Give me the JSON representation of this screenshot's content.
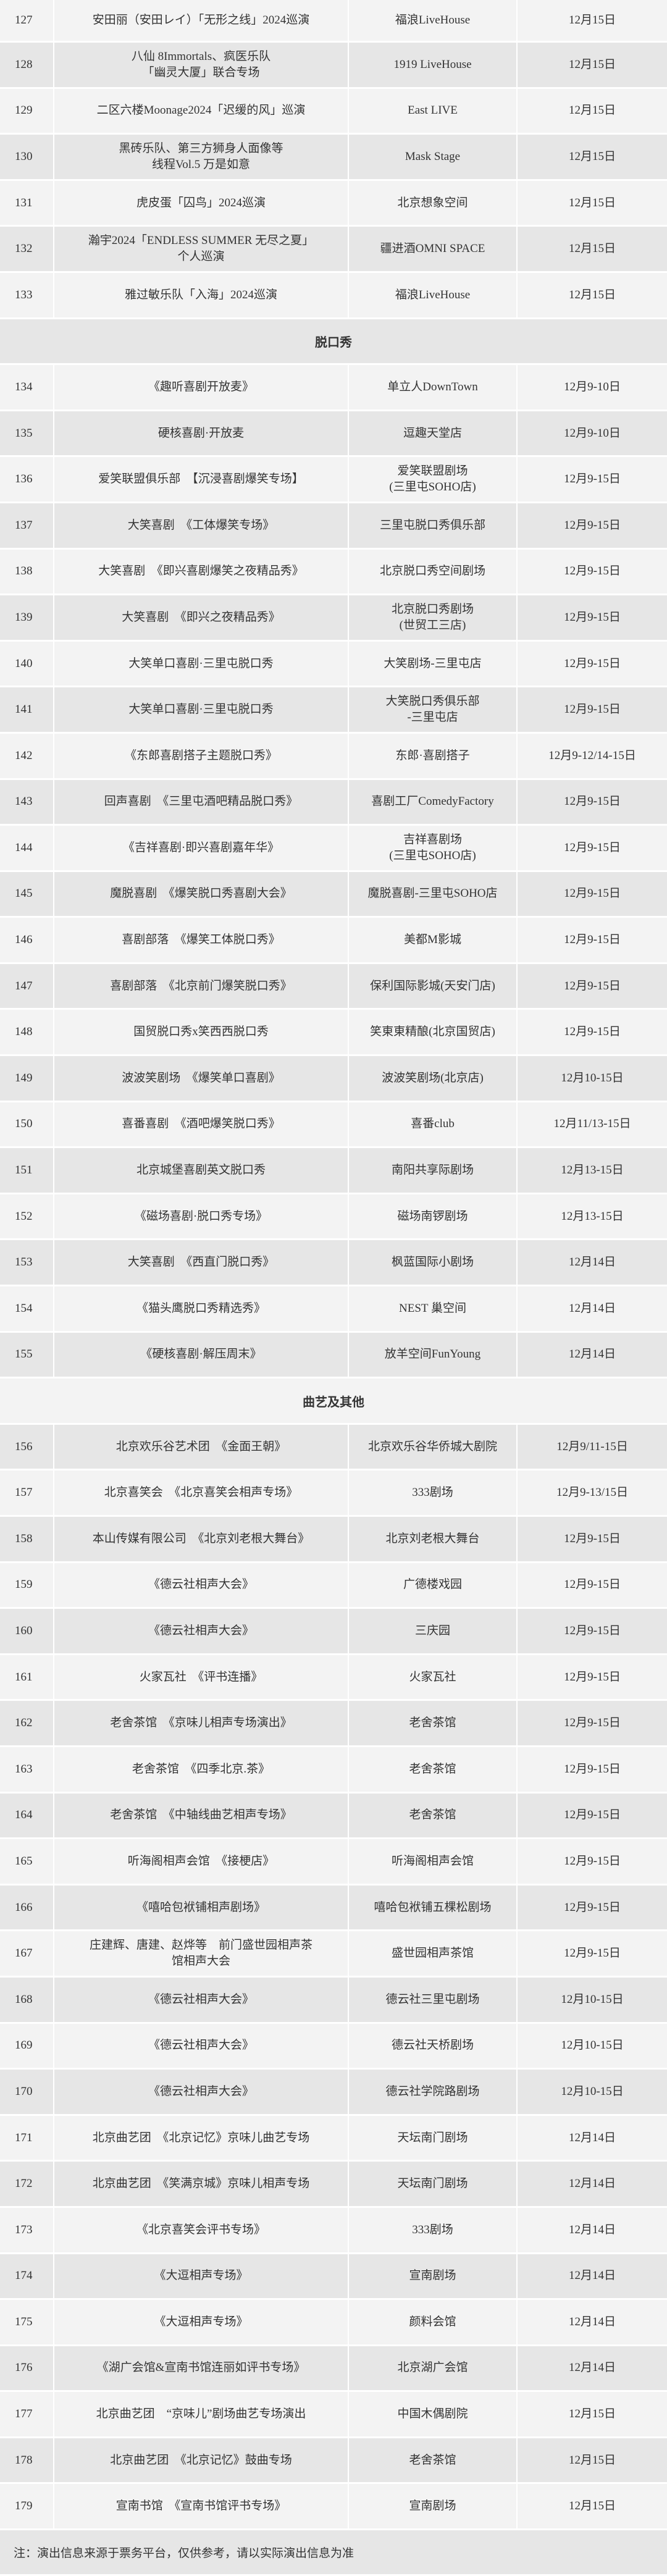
{
  "colors": {
    "row_light": "#f3f3f3",
    "row_dark": "#e6e6e6",
    "text": "#333333"
  },
  "groups": [
    {
      "title": "",
      "rows": [
        {
          "no": "127",
          "event": "安田丽（安田レイ）「无形之线」2024巡演",
          "venue": "福浪LiveHouse",
          "date": "12月15日"
        },
        {
          "no": "128",
          "event": "八仙 8Immortals、疯医乐队\n「幽灵大厦」联合专场",
          "venue": "1919 LiveHouse",
          "date": "12月15日"
        },
        {
          "no": "129",
          "event": "二区六楼Moonage2024「迟缓的风」巡演",
          "venue": "East LIVE",
          "date": "12月15日"
        },
        {
          "no": "130",
          "event": "黑砖乐队、第三方狮身人面像等\n线程Vol.5 万是如意",
          "venue": "Mask Stage",
          "date": "12月15日"
        },
        {
          "no": "131",
          "event": "虎皮蛋「囚鸟」2024巡演",
          "venue": "北京想象空间",
          "date": "12月15日"
        },
        {
          "no": "132",
          "event": "瀚宇2024「ENDLESS SUMMER 无尽之夏」\n个人巡演",
          "venue": "疆进酒OMNI SPACE",
          "date": "12月15日"
        },
        {
          "no": "133",
          "event": "雅过敏乐队「入海」2024巡演",
          "venue": "福浪LiveHouse",
          "date": "12月15日"
        }
      ]
    },
    {
      "title": "脱口秀",
      "rows": [
        {
          "no": "134",
          "event": "《趣听喜剧开放麦》",
          "venue": "单立人DownTown",
          "date": "12月9-10日"
        },
        {
          "no": "135",
          "event": "硬核喜剧·开放麦",
          "venue": "逗趣天堂店",
          "date": "12月9-10日"
        },
        {
          "no": "136",
          "event": "爱笑联盟俱乐部　【沉浸喜剧爆笑专场】",
          "venue": "爱笑联盟剧场\n(三里屯SOHO店)",
          "date": "12月9-15日"
        },
        {
          "no": "137",
          "event": "大笑喜剧　《工体爆笑专场》",
          "venue": "三里屯脱口秀俱乐部",
          "date": "12月9-15日"
        },
        {
          "no": "138",
          "event": "大笑喜剧　《即兴喜剧爆笑之夜精品秀》",
          "venue": "北京脱口秀空间剧场",
          "date": "12月9-15日"
        },
        {
          "no": "139",
          "event": "大笑喜剧　《即兴之夜精品秀》",
          "venue": "北京脱口秀剧场\n(世贸工三店)",
          "date": "12月9-15日"
        },
        {
          "no": "140",
          "event": "大笑单口喜剧·三里屯脱口秀",
          "venue": "大笑剧场-三里屯店",
          "date": "12月9-15日"
        },
        {
          "no": "141",
          "event": "大笑单口喜剧·三里屯脱口秀",
          "venue": "大笑脱口秀俱乐部\n-三里屯店",
          "date": "12月9-15日"
        },
        {
          "no": "142",
          "event": "《东郎喜剧搭子主题脱口秀》",
          "venue": "东郎·喜剧搭子",
          "date": "12月9-12/14-15日"
        },
        {
          "no": "143",
          "event": "回声喜剧　《三里屯酒吧精品脱口秀》",
          "venue": "喜剧工厂ComedyFactory",
          "date": "12月9-15日"
        },
        {
          "no": "144",
          "event": "《吉祥喜剧·即兴喜剧嘉年华》",
          "venue": "吉祥喜剧场\n(三里屯SOHO店)",
          "date": "12月9-15日"
        },
        {
          "no": "145",
          "event": "魔脱喜剧　《爆笑脱口秀喜剧大会》",
          "venue": "魔脱喜剧-三里屯SOHO店",
          "date": "12月9-15日"
        },
        {
          "no": "146",
          "event": "喜剧部落　《爆笑工体脱口秀》",
          "venue": "美都M影城",
          "date": "12月9-15日"
        },
        {
          "no": "147",
          "event": "喜剧部落　《北京前门爆笑脱口秀》",
          "venue": "保利国际影城(天安门店)",
          "date": "12月9-15日"
        },
        {
          "no": "148",
          "event": "国贸脱口秀x笑西西脱口秀",
          "venue": "笑東東精酿(北京国贸店)",
          "date": "12月9-15日"
        },
        {
          "no": "149",
          "event": "波波笑剧场　《爆笑单口喜剧》",
          "venue": "波波笑剧场(北京店)",
          "date": "12月10-15日"
        },
        {
          "no": "150",
          "event": "喜番喜剧　《酒吧爆笑脱口秀》",
          "venue": "喜番club",
          "date": "12月11/13-15日"
        },
        {
          "no": "151",
          "event": "北京城堡喜剧英文脱口秀",
          "venue": "南阳共享际剧场",
          "date": "12月13-15日"
        },
        {
          "no": "152",
          "event": "《磁场喜剧·脱口秀专场》",
          "venue": "磁场南锣剧场",
          "date": "12月13-15日"
        },
        {
          "no": "153",
          "event": "大笑喜剧　《西直门脱口秀》",
          "venue": "枫蓝国际小剧场",
          "date": "12月14日"
        },
        {
          "no": "154",
          "event": "《猫头鹰脱口秀精选秀》",
          "venue": "NEST 巢空间",
          "date": "12月14日"
        },
        {
          "no": "155",
          "event": "《硬核喜剧·解压周末》",
          "venue": "放羊空间FunYoung",
          "date": "12月14日"
        }
      ]
    },
    {
      "title": "曲艺及其他",
      "rows": [
        {
          "no": "156",
          "event": "北京欢乐谷艺术团　《金面王朝》",
          "venue": "北京欢乐谷华侨城大剧院",
          "date": "12月9/11-15日"
        },
        {
          "no": "157",
          "event": "北京喜笑会　《北京喜笑会相声专场》",
          "venue": "333剧场",
          "date": "12月9-13/15日"
        },
        {
          "no": "158",
          "event": "本山传媒有限公司　《北京刘老根大舞台》",
          "venue": "北京刘老根大舞台",
          "date": "12月9-15日"
        },
        {
          "no": "159",
          "event": "《德云社相声大会》",
          "venue": "广德楼戏园",
          "date": "12月9-15日"
        },
        {
          "no": "160",
          "event": "《德云社相声大会》",
          "venue": "三庆园",
          "date": "12月9-15日"
        },
        {
          "no": "161",
          "event": "火家瓦社　《评书连播》",
          "venue": "火家瓦社",
          "date": "12月9-15日"
        },
        {
          "no": "162",
          "event": "老舍茶馆　《京味儿相声专场演出》",
          "venue": "老舍茶馆",
          "date": "12月9-15日"
        },
        {
          "no": "163",
          "event": "老舍茶馆　《四季北京.茶》",
          "venue": "老舍茶馆",
          "date": "12月9-15日"
        },
        {
          "no": "164",
          "event": "老舍茶馆　《中轴线曲艺相声专场》",
          "venue": "老舍茶馆",
          "date": "12月9-15日"
        },
        {
          "no": "165",
          "event": "听海阁相声会馆　《接梗店》",
          "venue": "听海阁相声会馆",
          "date": "12月9-15日"
        },
        {
          "no": "166",
          "event": "《嘻哈包袱铺相声剧场》",
          "venue": "嘻哈包袱铺五棵松剧场",
          "date": "12月9-15日"
        },
        {
          "no": "167",
          "event": "庄建辉、唐建、赵烨等　前门盛世园相声茶\n馆相声大会",
          "venue": "盛世园相声茶馆",
          "date": "12月9-15日"
        },
        {
          "no": "168",
          "event": "《德云社相声大会》",
          "venue": "德云社三里屯剧场",
          "date": "12月10-15日"
        },
        {
          "no": "169",
          "event": "《德云社相声大会》",
          "venue": "德云社天桥剧场",
          "date": "12月10-15日"
        },
        {
          "no": "170",
          "event": "《德云社相声大会》",
          "venue": "德云社学院路剧场",
          "date": "12月10-15日"
        },
        {
          "no": "171",
          "event": "北京曲艺团　《北京记忆》京味儿曲艺专场",
          "venue": "天坛南门剧场",
          "date": "12月14日"
        },
        {
          "no": "172",
          "event": "北京曲艺团　《笑满京城》京味儿相声专场",
          "venue": "天坛南门剧场",
          "date": "12月14日"
        },
        {
          "no": "173",
          "event": "《北京喜笑会评书专场》",
          "venue": "333剧场",
          "date": "12月14日"
        },
        {
          "no": "174",
          "event": "《大逗相声专场》",
          "venue": "宣南剧场",
          "date": "12月14日"
        },
        {
          "no": "175",
          "event": "《大逗相声专场》",
          "venue": "颜料会馆",
          "date": "12月14日"
        },
        {
          "no": "176",
          "event": "《湖广会馆&宣南书馆连丽如评书专场》",
          "venue": "北京湖广会馆",
          "date": "12月14日"
        },
        {
          "no": "177",
          "event": "北京曲艺团　“京味儿”剧场曲艺专场演出",
          "venue": "中国木偶剧院",
          "date": "12月15日"
        },
        {
          "no": "178",
          "event": "北京曲艺团　《北京记忆》鼓曲专场",
          "venue": "老舍茶馆",
          "date": "12月15日"
        },
        {
          "no": "179",
          "event": "宣南书馆　《宣南书馆评书专场》",
          "venue": "宣南剧场",
          "date": "12月15日"
        }
      ]
    }
  ],
  "footer": {
    "note": "注：演出信息来源于票务平台，仅供参考，请以实际演出信息为准"
  }
}
